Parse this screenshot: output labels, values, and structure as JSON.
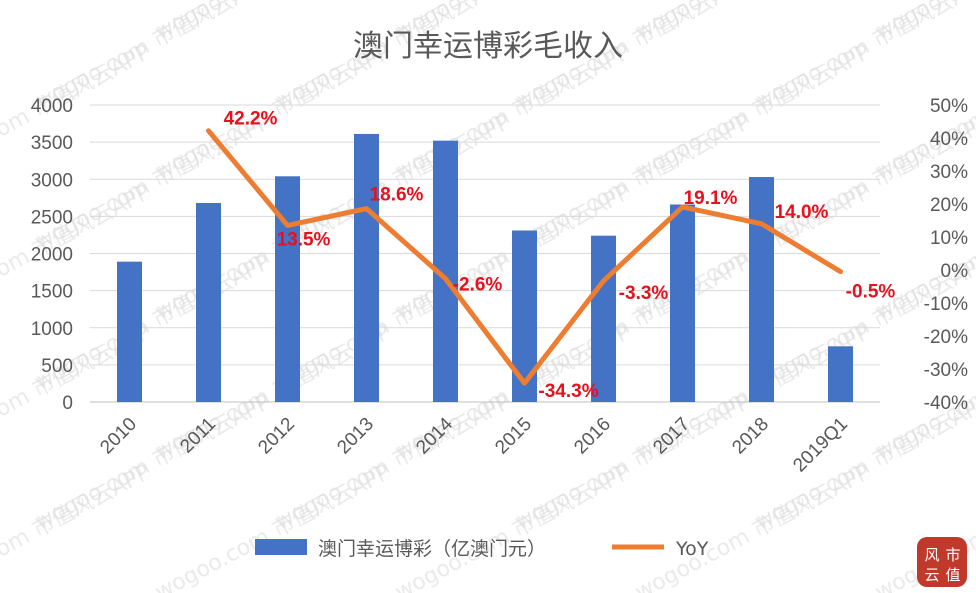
{
  "watermark": "wogoo.com  市值风云APP",
  "stamp": {
    "line1": "风",
    "line2": "云",
    "line3": "市",
    "line4": "值"
  },
  "chart_data": {
    "type": "bar",
    "title": "澳门幸运博彩毛收入",
    "categories": [
      "2010",
      "2011",
      "2012",
      "2013",
      "2014",
      "2015",
      "2016",
      "2017",
      "2018",
      "2019Q1"
    ],
    "series": [
      {
        "name": "澳门幸运博彩（亿澳门元）",
        "type": "bar",
        "axis": "left",
        "values": [
          1890,
          2680,
          3040,
          3610,
          3520,
          2310,
          2240,
          2660,
          3030,
          750
        ],
        "color": "#4472c4"
      },
      {
        "name": "YoY",
        "type": "line",
        "axis": "right",
        "values": [
          null,
          42.2,
          13.5,
          18.6,
          -2.6,
          -34.3,
          -3.3,
          19.1,
          14.0,
          -0.5
        ],
        "labels": [
          "",
          "42.2%",
          "13.5%",
          "18.6%",
          "-2.6%",
          "-34.3%",
          "-3.3%",
          "19.1%",
          "14.0%",
          "-0.5%"
        ],
        "color": "#ed7d31",
        "label_color": "#e8101c"
      }
    ],
    "y_left": {
      "min": 0,
      "max": 4000,
      "step": 500,
      "ticks": [
        "0",
        "500",
        "1000",
        "1500",
        "2000",
        "2500",
        "3000",
        "3500",
        "4000"
      ]
    },
    "y_right": {
      "min": -40,
      "max": 50,
      "step": 10,
      "ticks": [
        "-40%",
        "-30%",
        "-20%",
        "-10%",
        "0%",
        "10%",
        "20%",
        "30%",
        "40%",
        "50%"
      ]
    },
    "grid": true,
    "legend_position": "bottom"
  }
}
